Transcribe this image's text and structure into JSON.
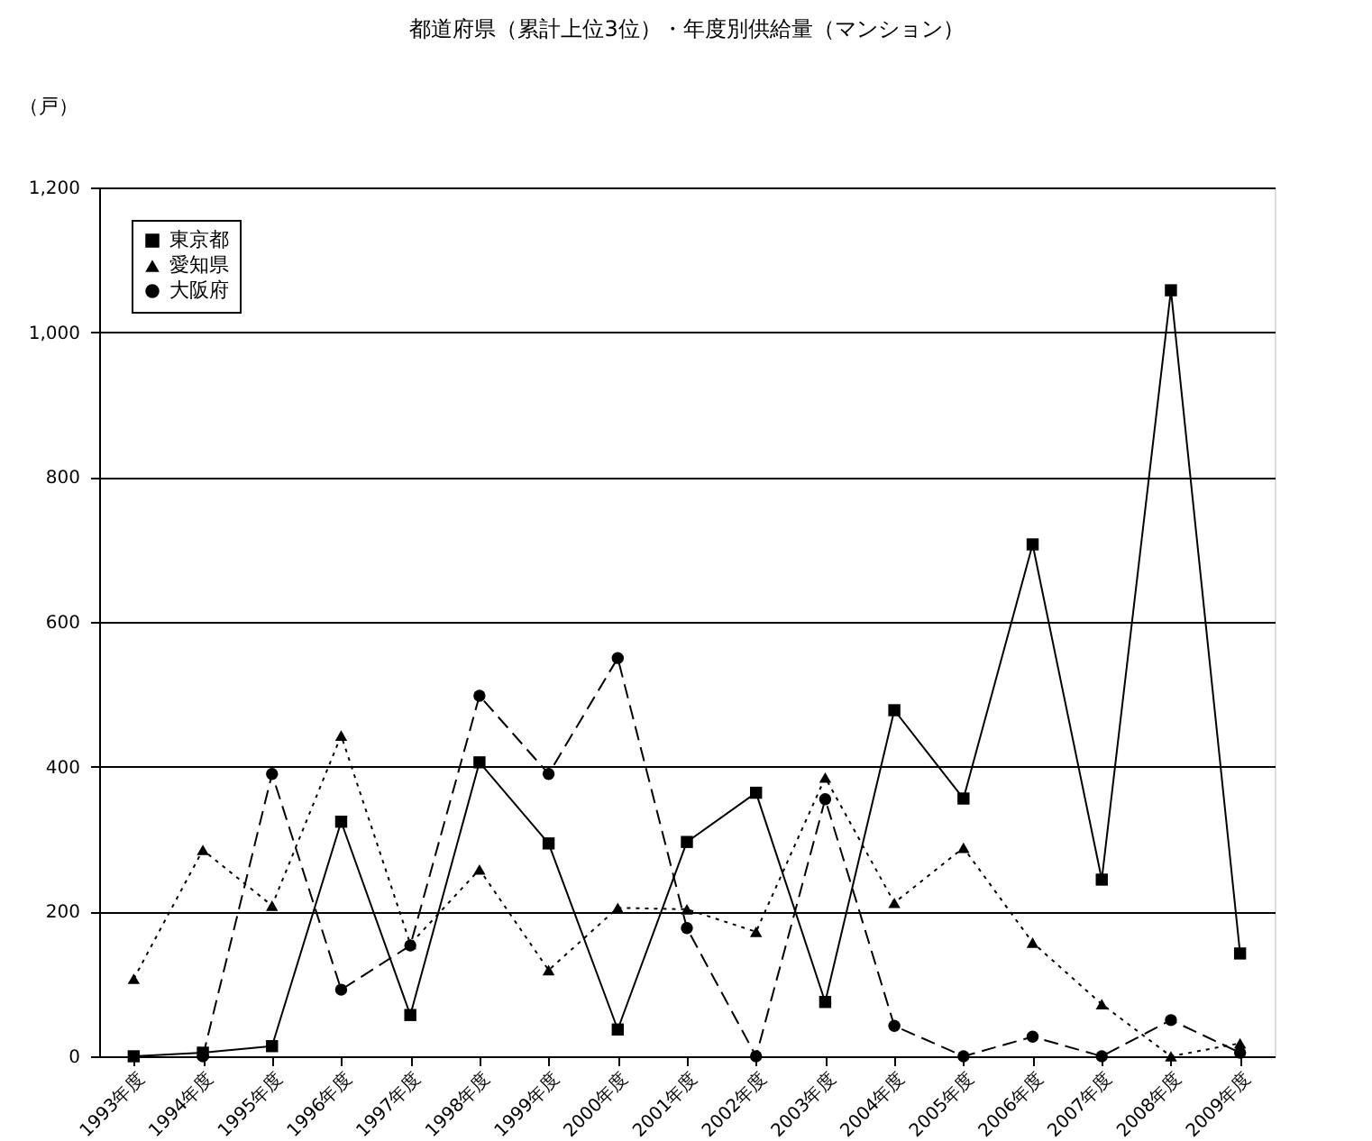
{
  "chart_data": {
    "type": "line",
    "title": "都道府県（累計上位3位）・年度別供給量（マンション）",
    "ylabel": "（戸）",
    "categories": [
      "1993年度",
      "1994年度",
      "1995年度",
      "1996年度",
      "1997年度",
      "1998年度",
      "1999年度",
      "2000年度",
      "2001年度",
      "2002年度",
      "2003年度",
      "2004年度",
      "2005年度",
      "2006年度",
      "2007年度",
      "2008年度",
      "2009年度"
    ],
    "series": [
      {
        "name": "東京都",
        "color": "#000000",
        "marker": "square",
        "line_style": "solid",
        "values": [
          0,
          5,
          14,
          324,
          57,
          406,
          294,
          37,
          296,
          364,
          75,
          478,
          356,
          707,
          244,
          1058,
          142
        ]
      },
      {
        "name": "愛知県",
        "color": "#000000",
        "marker": "triangle",
        "line_style": "dotted",
        "values": [
          107,
          285,
          208,
          443,
          155,
          258,
          119,
          205,
          203,
          172,
          385,
          212,
          288,
          157,
          72,
          0,
          18
        ]
      },
      {
        "name": "大阪府",
        "color": "#000000",
        "marker": "circle",
        "line_style": "dashed",
        "values": [
          null,
          0,
          390,
          92,
          153,
          498,
          390,
          550,
          177,
          0,
          355,
          42,
          0,
          27,
          0,
          50,
          5
        ]
      }
    ],
    "ylim": [
      0,
      1200
    ],
    "yticks": [
      0,
      200,
      400,
      600,
      800,
      {
        "value": 1000,
        "label": "1,000"
      },
      {
        "value": 1200,
        "label": "1,200"
      }
    ],
    "grid": "y",
    "legend": "top left"
  }
}
